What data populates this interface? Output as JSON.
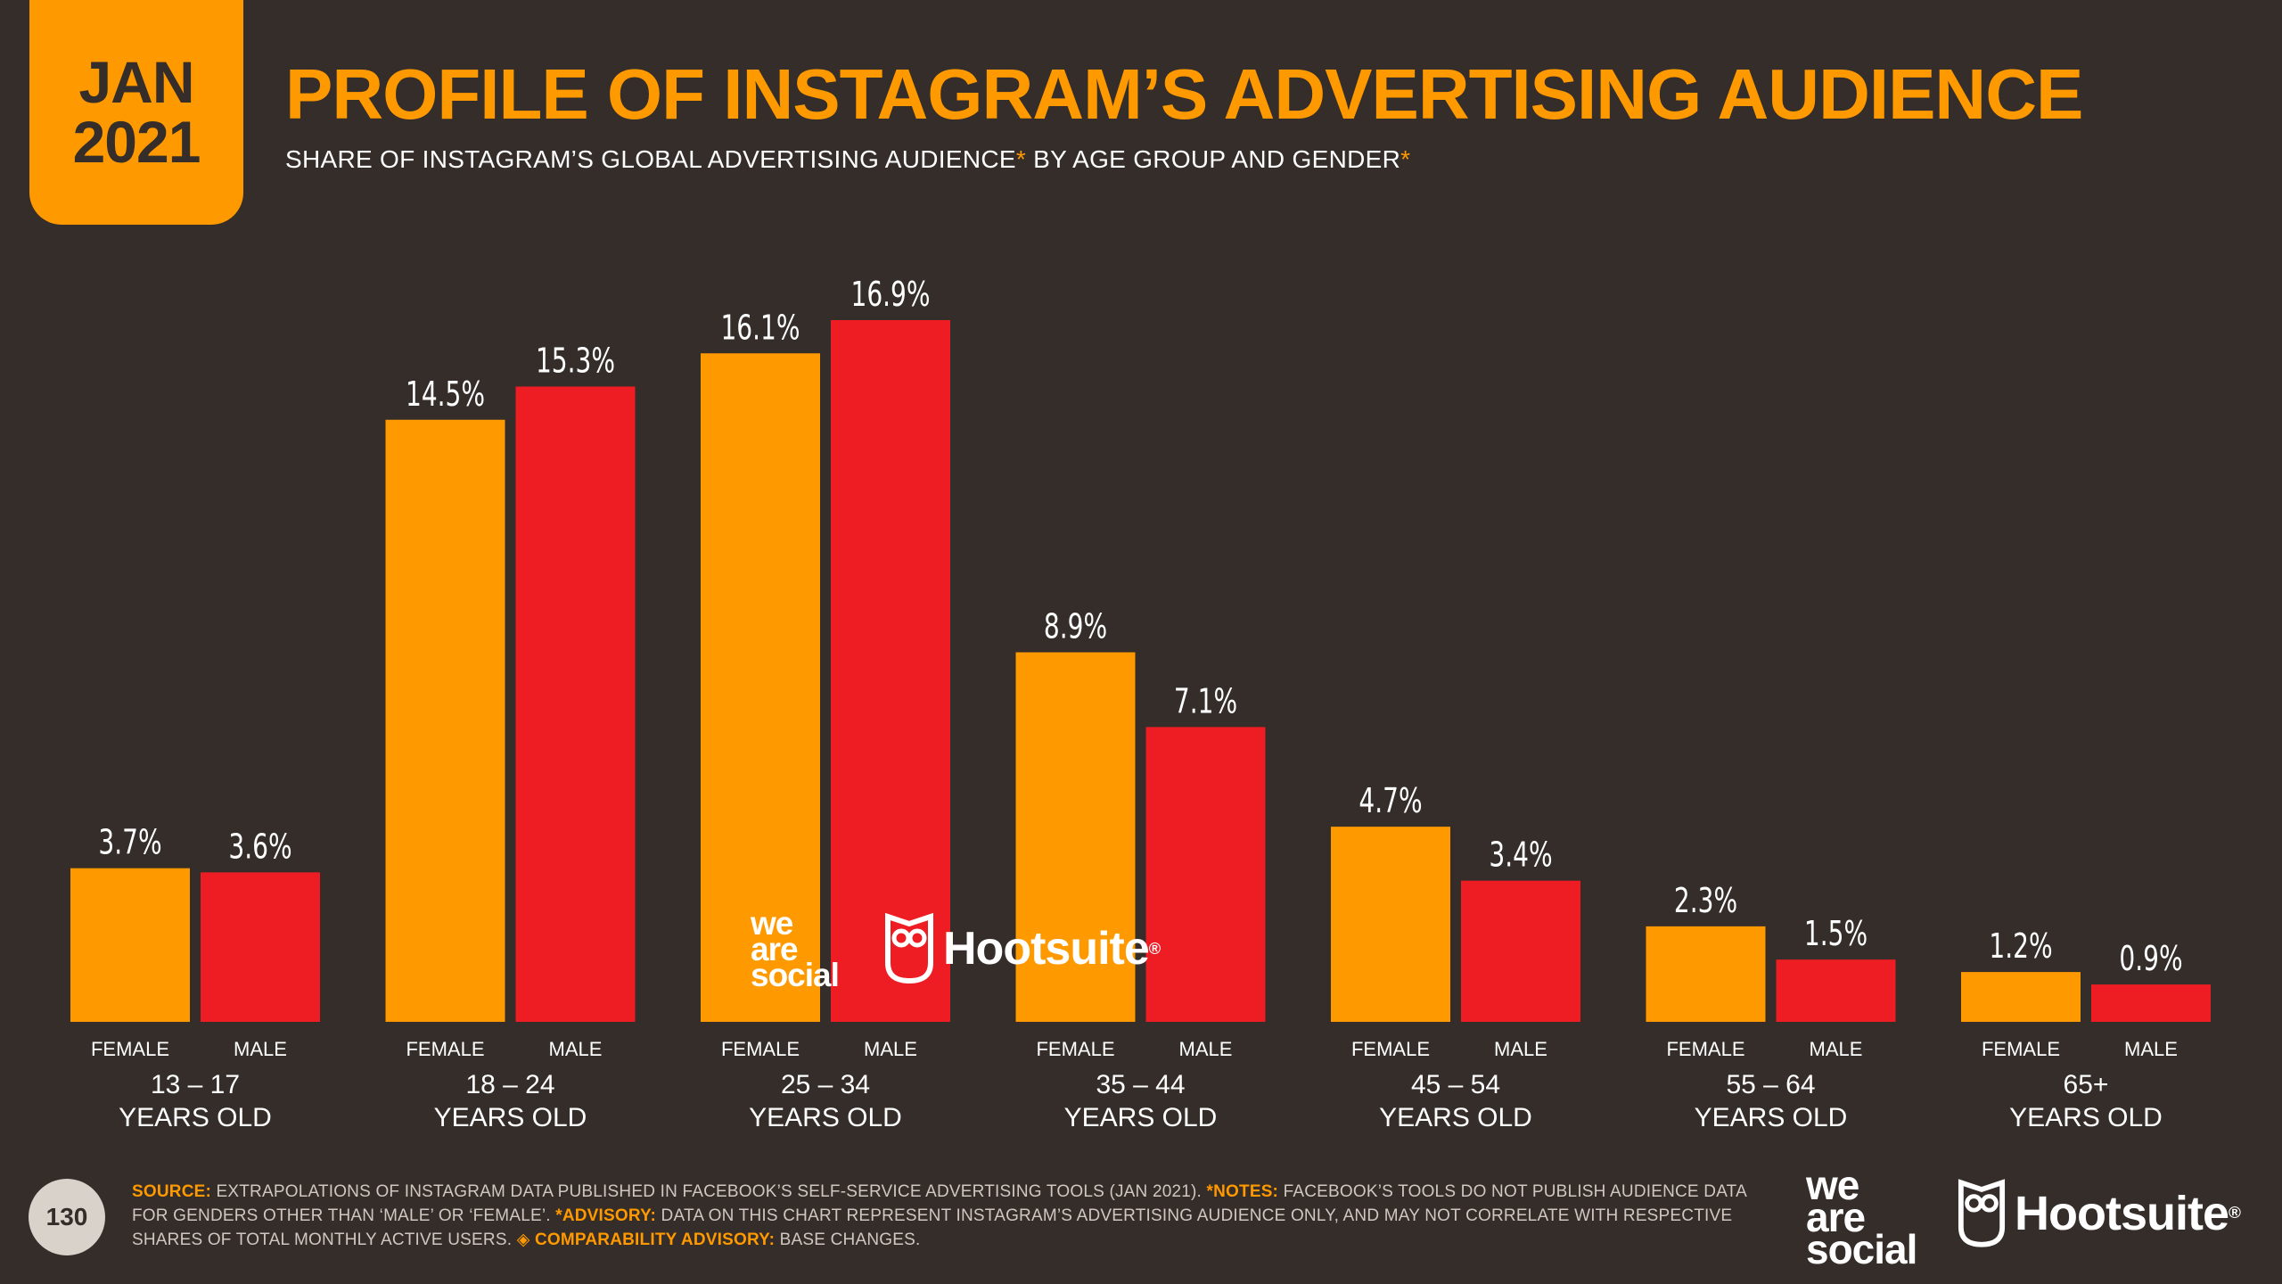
{
  "badge": {
    "month": "JAN",
    "year": "2021"
  },
  "title": "PROFILE OF INSTAGRAM’S ADVERTISING AUDIENCE",
  "subtitle": {
    "part1": "SHARE OF INSTAGRAM’S GLOBAL ADVERTISING AUDIENCE",
    "asterisk": "*",
    "part2": " BY AGE GROUP AND GENDER"
  },
  "colors": {
    "female": "#ff9900",
    "male": "#ee1c23",
    "background": "#342d29",
    "accent": "#ff9900"
  },
  "chart_data": {
    "type": "bar",
    "title": "PROFILE OF INSTAGRAM’S ADVERTISING AUDIENCE",
    "categories": [
      [
        "13 – 17",
        "YEARS OLD"
      ],
      [
        "18 – 24",
        "YEARS OLD"
      ],
      [
        "25 – 34",
        "YEARS OLD"
      ],
      [
        "35 – 44",
        "YEARS OLD"
      ],
      [
        "45 – 54",
        "YEARS OLD"
      ],
      [
        "55 – 64",
        "YEARS OLD"
      ],
      [
        "65+",
        "YEARS OLD"
      ]
    ],
    "series": [
      {
        "name": "FEMALE",
        "values": [
          3.7,
          14.5,
          16.1,
          8.9,
          4.7,
          2.3,
          1.2
        ],
        "labels": [
          "3.7%",
          "14.5%",
          "16.1%",
          "8.9%",
          "4.7%",
          "2.3%",
          "1.2%"
        ]
      },
      {
        "name": "MALE",
        "values": [
          3.6,
          15.3,
          16.9,
          7.1,
          3.4,
          1.5,
          0.9
        ],
        "labels": [
          "3.6%",
          "15.3%",
          "16.9%",
          "7.1%",
          "3.4%",
          "1.5%",
          "0.9%"
        ]
      }
    ],
    "unit": "%",
    "ylim": [
      0,
      16.9
    ]
  },
  "footer": {
    "source_label": "SOURCE:",
    "source_text": " EXTRAPOLATIONS OF INSTAGRAM DATA PUBLISHED IN FACEBOOK’S SELF-SERVICE ADVERTISING TOOLS (JAN 2021). ",
    "notes_label": "*NOTES:",
    "notes_text": " FACEBOOK’S TOOLS DO NOT PUBLISH AUDIENCE DATA FOR GENDERS OTHER THAN ‘MALE’ OR ‘FEMALE’. ",
    "advisory_label": "*ADVISORY:",
    "advisory_text": " DATA ON THIS CHART REPRESENT INSTAGRAM’S ADVERTISING AUDIENCE ONLY, AND MAY NOT CORRELATE WITH RESPECTIVE SHARES OF TOTAL MONTHLY ACTIVE USERS. ",
    "comparability_label": "◈ COMPARABILITY ADVISORY:",
    "comparability_text": " BASE CHANGES."
  },
  "page_number": "130",
  "logos": {
    "we_are_social": [
      "we",
      "are",
      "social"
    ],
    "hootsuite": "Hootsuite",
    "registered": "®"
  }
}
